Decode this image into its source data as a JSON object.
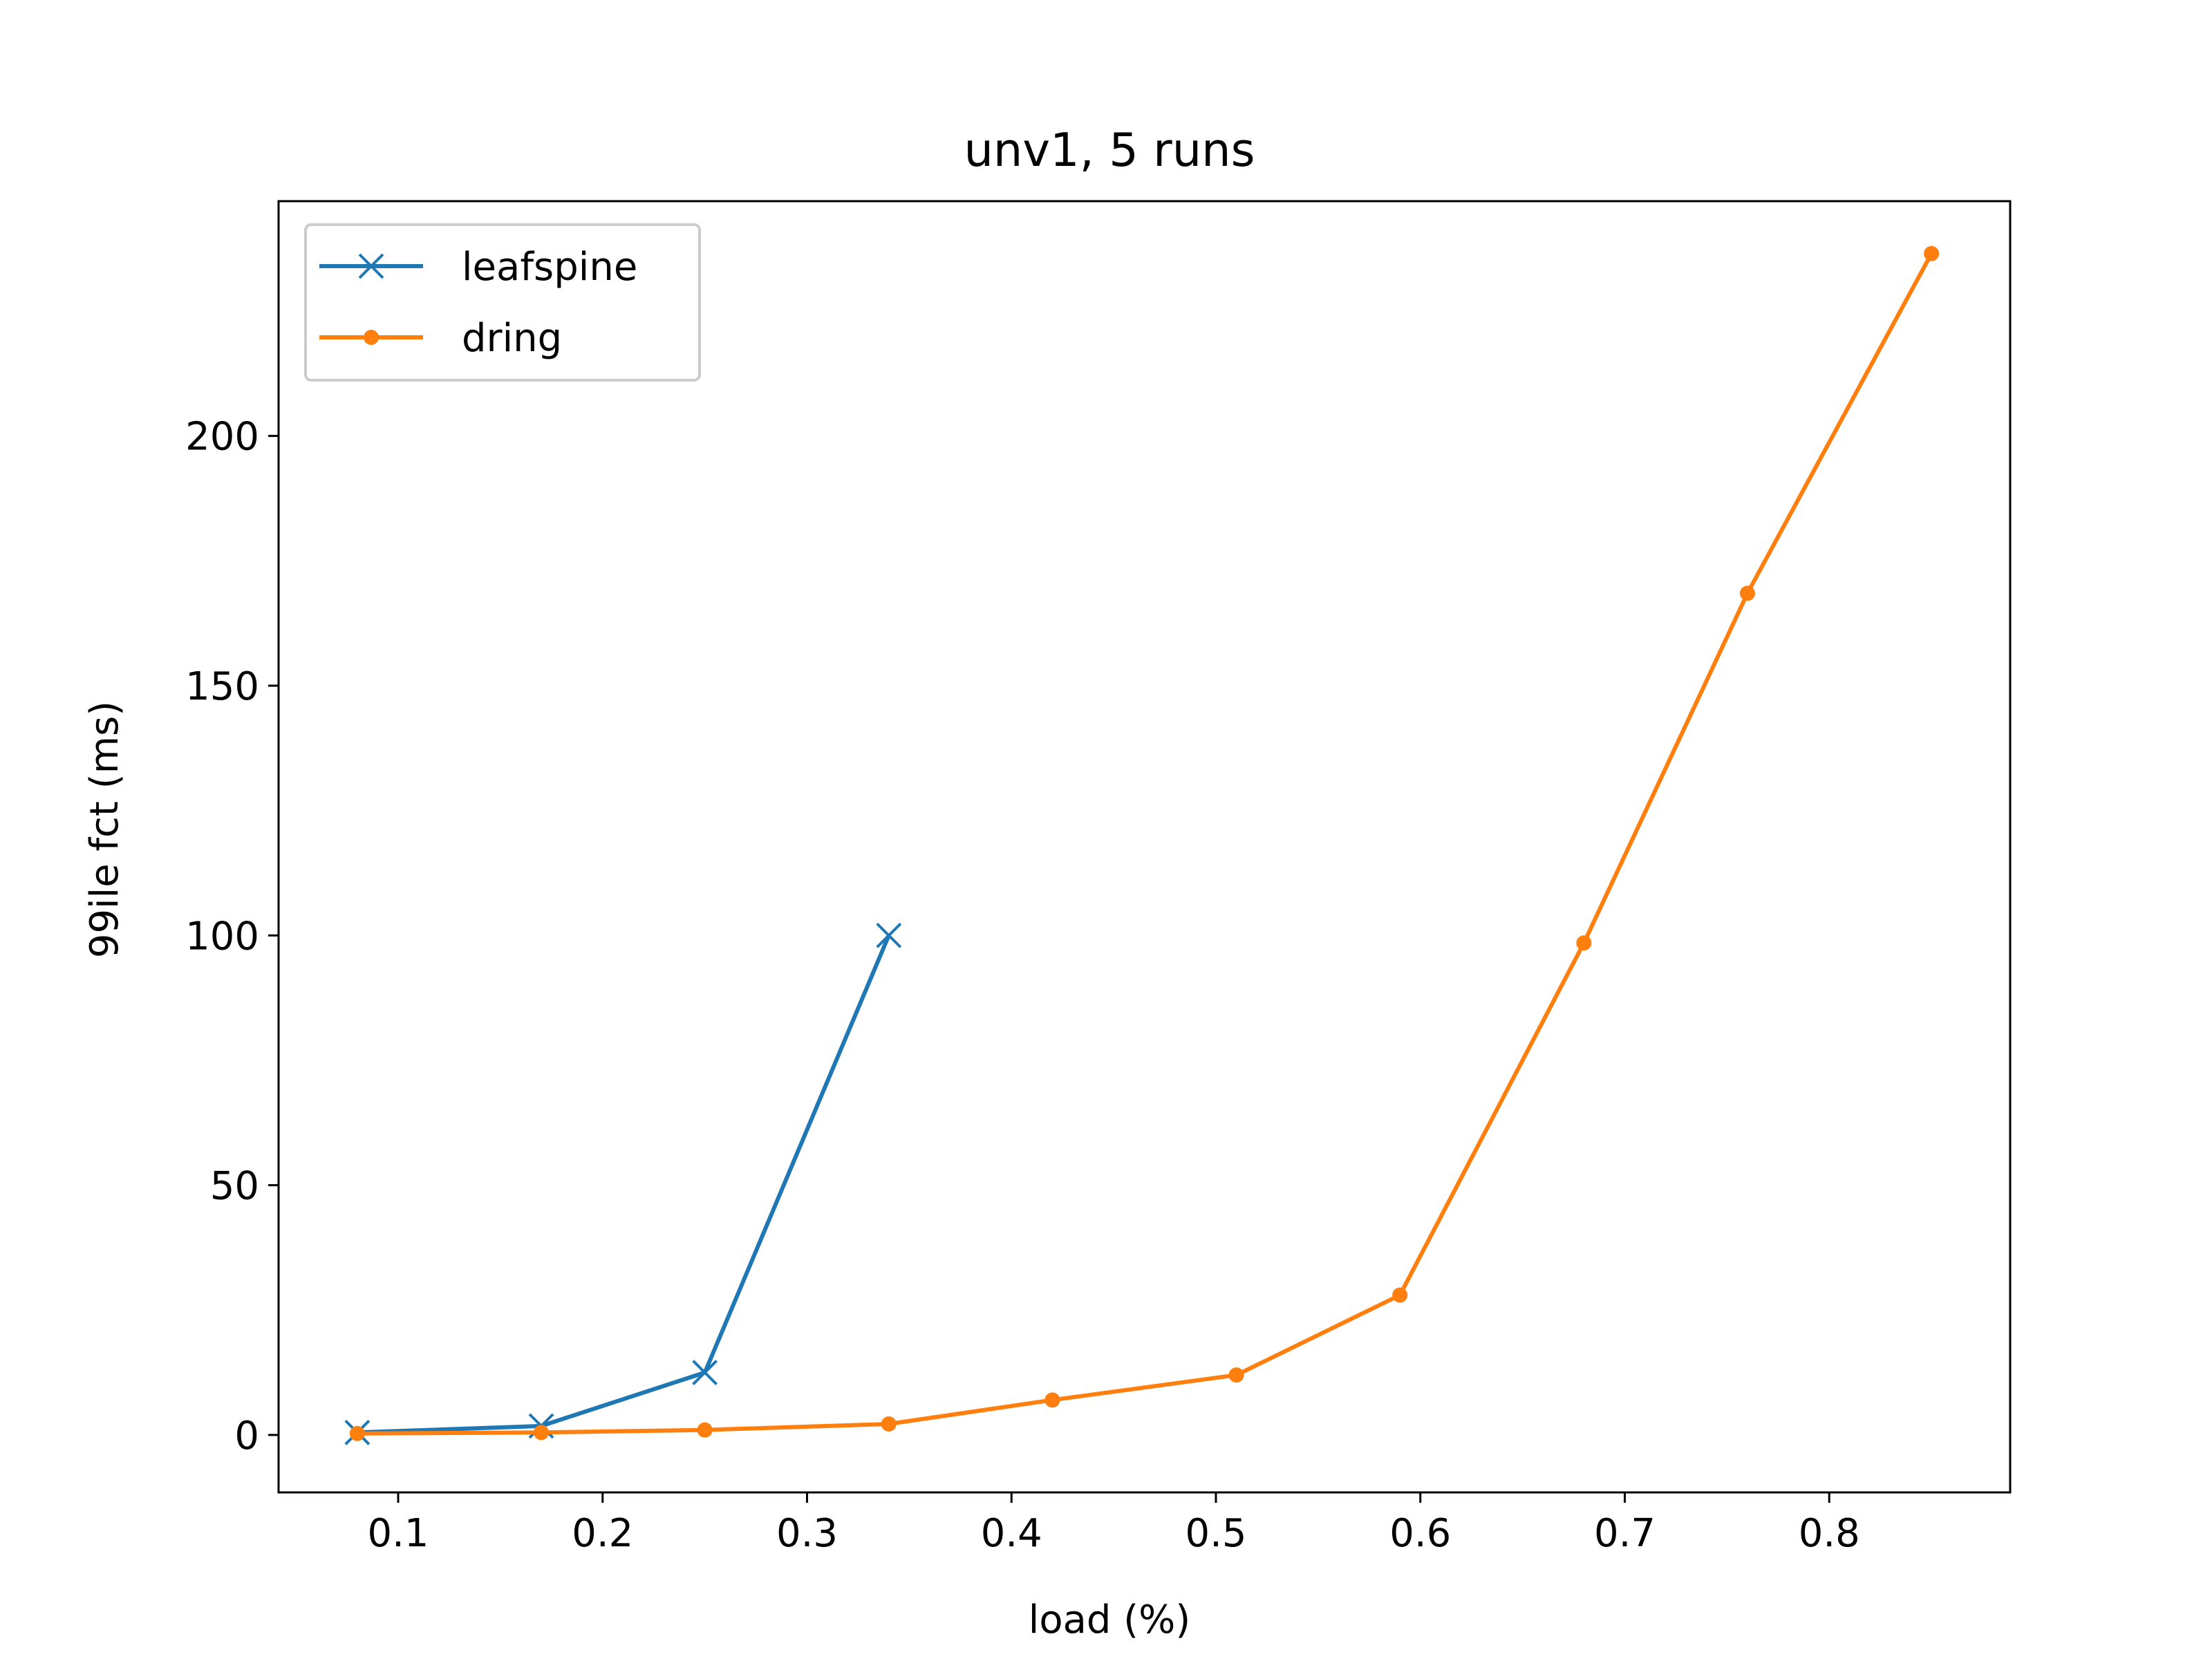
{
  "chart_data": {
    "type": "line",
    "title": "unv1, 5 runs",
    "xlabel": "load (%)",
    "ylabel": "99ile fct (ms)",
    "xlim": [
      0.0415,
      0.8885
    ],
    "ylim": [
      -11.5,
      247
    ],
    "xticks": [
      0.1,
      0.2,
      0.3,
      0.4,
      0.5,
      0.6,
      0.7,
      0.8
    ],
    "xtick_labels": [
      "0.1",
      "0.2",
      "0.3",
      "0.4",
      "0.5",
      "0.6",
      "0.7",
      "0.8"
    ],
    "yticks": [
      0,
      50,
      100,
      150,
      200
    ],
    "ytick_labels": [
      "0",
      "50",
      "100",
      "150",
      "200"
    ],
    "grid": false,
    "legend_position": "top-left",
    "series": [
      {
        "name": "leafspine",
        "color": "#1f77b4",
        "marker": "x",
        "x": [
          0.08,
          0.17,
          0.25,
          0.34
        ],
        "y": [
          0.5,
          1.8,
          12.5,
          100
        ]
      },
      {
        "name": "dring",
        "color": "#ff7f0e",
        "marker": "dot",
        "x": [
          0.08,
          0.17,
          0.25,
          0.34,
          0.42,
          0.51,
          0.59,
          0.68,
          0.76,
          0.85
        ],
        "y": [
          0.3,
          0.5,
          1.0,
          2.2,
          7.0,
          12.0,
          28.0,
          98.5,
          168.5,
          236.5
        ]
      }
    ]
  }
}
